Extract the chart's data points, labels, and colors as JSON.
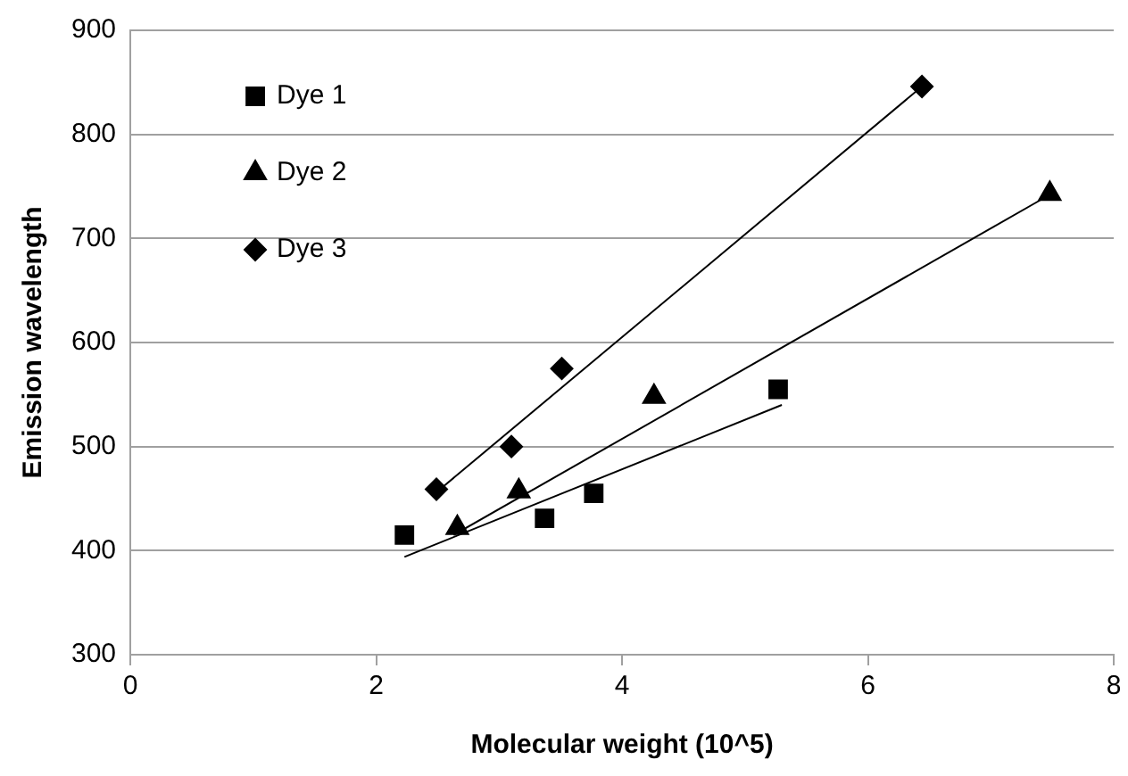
{
  "chart_data": {
    "type": "scatter",
    "xlabel": "Molecular weight (10^5)",
    "ylabel": "Emission wavelength",
    "xlim": [
      0,
      8
    ],
    "xticks": [
      0,
      2,
      4,
      6,
      8
    ],
    "ylim": [
      300,
      900
    ],
    "yticks": [
      300,
      400,
      500,
      600,
      700,
      800,
      900
    ],
    "grid": "y",
    "legend": "top left",
    "series": [
      {
        "name": "Dye 1",
        "type": "scatter",
        "marker": "square",
        "color": "#000000",
        "x": [
          2.23,
          3.37,
          3.77,
          5.27
        ],
        "values": [
          415,
          431,
          455,
          555
        ]
      },
      {
        "name": "Dye 2",
        "type": "scatter",
        "marker": "triangle",
        "color": "#000000",
        "x": [
          2.66,
          3.16,
          4.26,
          7.48
        ],
        "values": [
          422,
          457,
          548,
          743
        ]
      },
      {
        "name": "Dye 3",
        "type": "scatter",
        "marker": "diamond",
        "color": "#000000",
        "x": [
          2.49,
          3.1,
          3.51,
          6.44
        ],
        "values": [
          459,
          500,
          575,
          846
        ]
      },
      {
        "type": "line",
        "marker": "none",
        "color": "#000000",
        "x": [
          2.23,
          5.3
        ],
        "values": [
          394,
          540
        ]
      },
      {
        "type": "line",
        "marker": "none",
        "color": "#000000",
        "x": [
          2.63,
          7.42
        ],
        "values": [
          415,
          738
        ]
      },
      {
        "type": "line",
        "marker": "none",
        "color": "#000000",
        "x": [
          2.55,
          6.44
        ],
        "values": [
          462,
          846
        ]
      }
    ]
  }
}
